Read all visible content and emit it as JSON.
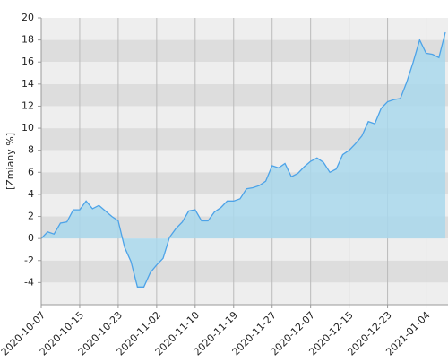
{
  "chart_data": {
    "type": "area",
    "y_label": "[Zmiany %]",
    "categories": [
      "2020-10-07",
      null,
      null,
      null,
      null,
      null,
      "2020-10-15",
      null,
      null,
      null,
      null,
      null,
      "2020-10-23",
      null,
      null,
      null,
      null,
      null,
      "2020-11-02",
      null,
      null,
      null,
      null,
      null,
      "2020-11-10",
      null,
      null,
      null,
      null,
      null,
      "2020-11-19",
      null,
      null,
      null,
      null,
      null,
      "2020-11-27",
      null,
      null,
      null,
      null,
      null,
      "2020-12-07",
      null,
      null,
      null,
      null,
      null,
      "2020-12-15",
      null,
      null,
      null,
      null,
      null,
      "2020-12-23",
      null,
      null,
      null,
      null,
      null,
      "2021-01-04",
      null,
      null,
      null
    ],
    "values": [
      0,
      0.6,
      0.4,
      1.4,
      1.5,
      2.6,
      2.6,
      3.4,
      2.7,
      3.0,
      2.5,
      2.0,
      1.6,
      -0.8,
      -2.1,
      -4.4,
      -4.4,
      -3.1,
      -2.4,
      -1.8,
      0.1,
      0.9,
      1.5,
      2.5,
      2.6,
      1.6,
      1.6,
      2.4,
      2.8,
      3.4,
      3.4,
      3.6,
      4.5,
      4.6,
      4.8,
      5.2,
      6.6,
      6.4,
      6.8,
      5.6,
      5.9,
      6.5,
      7.0,
      7.3,
      6.9,
      6.0,
      6.3,
      7.6,
      8.0,
      8.6,
      9.3,
      10.6,
      10.4,
      11.8,
      12.4,
      12.6,
      12.7,
      14.2,
      16.0,
      18.0,
      16.8,
      16.7,
      16.4,
      18.7
    ],
    "color": "#4da3e8",
    "fill_color": "#a9d8ec",
    "ylim": [
      -6,
      20
    ],
    "yticks": [
      -4,
      -2,
      0,
      2,
      4,
      6,
      8,
      10,
      12,
      14,
      16,
      18,
      20
    ],
    "band_colors": [
      "#eeeeee",
      "#dddddd"
    ],
    "grid": true
  }
}
